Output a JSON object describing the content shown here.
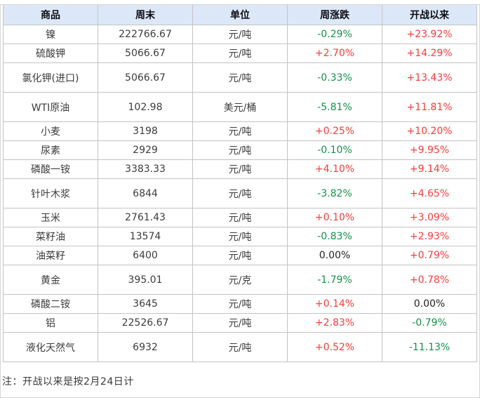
{
  "chart_data": {
    "type": "table",
    "columns": [
      "商品",
      "周末",
      "单位",
      "周涨跌",
      "开战以来"
    ],
    "rows": [
      {
        "name": "镍",
        "value": "222766.67",
        "unit": "元/吨",
        "weekly": "-0.29%",
        "since": "+23.92%",
        "tall": false
      },
      {
        "name": "硫酸钾",
        "value": "5066.67",
        "unit": "元/吨",
        "weekly": "+2.70%",
        "since": "+14.29%",
        "tall": false
      },
      {
        "name": "氯化钾(进口)",
        "value": "5066.67",
        "unit": "元/吨",
        "weekly": "-0.33%",
        "since": "+13.43%",
        "tall": true
      },
      {
        "name": "WTI原油",
        "value": "102.98",
        "unit": "美元/桶",
        "weekly": "-5.81%",
        "since": "+11.81%",
        "tall": true
      },
      {
        "name": "小麦",
        "value": "3198",
        "unit": "元/吨",
        "weekly": "+0.25%",
        "since": "+10.20%",
        "tall": false
      },
      {
        "name": "尿素",
        "value": "2929",
        "unit": "元/吨",
        "weekly": "-0.10%",
        "since": "+9.95%",
        "tall": false
      },
      {
        "name": "磷酸一铵",
        "value": "3383.33",
        "unit": "元/吨",
        "weekly": "+4.10%",
        "since": "+9.14%",
        "tall": false
      },
      {
        "name": "针叶木浆",
        "value": "6844",
        "unit": "元/吨",
        "weekly": "-3.82%",
        "since": "+4.65%",
        "tall": true
      },
      {
        "name": "玉米",
        "value": "2761.43",
        "unit": "元/吨",
        "weekly": "+0.10%",
        "since": "+3.09%",
        "tall": false
      },
      {
        "name": "菜籽油",
        "value": "13574",
        "unit": "元/吨",
        "weekly": "-0.83%",
        "since": "+2.93%",
        "tall": false
      },
      {
        "name": "油菜籽",
        "value": "6400",
        "unit": "元/吨",
        "weekly": "0.00%",
        "since": "+0.79%",
        "tall": false
      },
      {
        "name": "黄金",
        "value": "395.01",
        "unit": "元/克",
        "weekly": "-1.79%",
        "since": "+0.78%",
        "tall": true
      },
      {
        "name": "磷酸二铵",
        "value": "3645",
        "unit": "元/吨",
        "weekly": "+0.14%",
        "since": "0.00%",
        "tall": false
      },
      {
        "name": "铝",
        "value": "22526.67",
        "unit": "元/吨",
        "weekly": "+2.83%",
        "since": "-0.79%",
        "tall": false
      },
      {
        "name": "液化天然气",
        "value": "6932",
        "unit": "元/吨",
        "weekly": "+0.52%",
        "since": "-11.13%",
        "tall": true
      }
    ],
    "note": "注：开战以来是按2月24日计",
    "legend_position": "none",
    "grid": true
  },
  "colors": {
    "up": "#fa3b3b",
    "down": "#12914a",
    "flat": "#1f1f1f",
    "header_bg": "#dce8f7",
    "border": "#c2c3c5"
  }
}
